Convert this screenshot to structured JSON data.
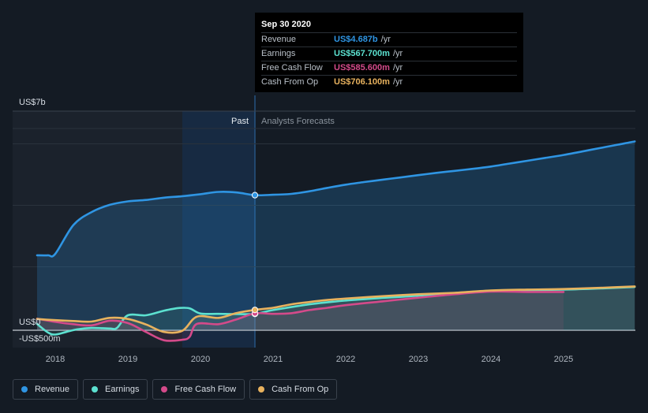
{
  "tooltip": {
    "date": "Sep 30 2020",
    "rows": [
      {
        "label": "Revenue",
        "value": "US$4.687b",
        "unit": "/yr",
        "color": "#2f95e3"
      },
      {
        "label": "Earnings",
        "value": "US$567.700m",
        "unit": "/yr",
        "color": "#5ce1d0"
      },
      {
        "label": "Free Cash Flow",
        "value": "US$585.600m",
        "unit": "/yr",
        "color": "#d44a8a"
      },
      {
        "label": "Cash From Op",
        "value": "US$706.100m",
        "unit": "/yr",
        "color": "#e8b25e"
      }
    ]
  },
  "labels": {
    "past": "Past",
    "forecast": "Analysts Forecasts"
  },
  "legend": [
    {
      "label": "Revenue",
      "color": "#2f95e3"
    },
    {
      "label": "Earnings",
      "color": "#5ce1d0"
    },
    {
      "label": "Free Cash Flow",
      "color": "#d44a8a"
    },
    {
      "label": "Cash From Op",
      "color": "#e8b25e"
    }
  ],
  "chart_data": {
    "type": "line",
    "unit": "US$ millions",
    "y_tick_labels": [
      {
        "value": 7000,
        "label": "US$7b"
      },
      {
        "value": 0,
        "label": "US$0"
      },
      {
        "value": -500,
        "label": "-US$500m"
      }
    ],
    "ylim": [
      -500,
      7000
    ],
    "xlim": [
      2017.6,
      2025.98
    ],
    "x_ticks": [
      2018,
      2019,
      2020,
      2021,
      2022,
      2023,
      2024,
      2025
    ],
    "past_end": 2020.75,
    "highlight_start": 2019.75,
    "grid": true,
    "series": [
      {
        "name": "Revenue",
        "color": "#2f95e3",
        "points": [
          [
            2017.75,
            2600
          ],
          [
            2017.9,
            2600
          ],
          [
            2018.0,
            2650
          ],
          [
            2018.25,
            3650
          ],
          [
            2018.5,
            4100
          ],
          [
            2018.75,
            4350
          ],
          [
            2019.0,
            4470
          ],
          [
            2019.25,
            4520
          ],
          [
            2019.5,
            4600
          ],
          [
            2019.75,
            4650
          ],
          [
            2020.0,
            4720
          ],
          [
            2020.25,
            4800
          ],
          [
            2020.5,
            4780
          ],
          [
            2020.75,
            4687
          ],
          [
            2021.0,
            4700
          ],
          [
            2021.25,
            4730
          ],
          [
            2021.5,
            4820
          ],
          [
            2021.75,
            4940
          ],
          [
            2022.0,
            5050
          ],
          [
            2022.25,
            5140
          ],
          [
            2022.5,
            5220
          ],
          [
            2022.75,
            5300
          ],
          [
            2023.0,
            5380
          ],
          [
            2023.25,
            5460
          ],
          [
            2023.5,
            5530
          ],
          [
            2023.75,
            5600
          ],
          [
            2024.0,
            5680
          ],
          [
            2024.25,
            5780
          ],
          [
            2024.5,
            5880
          ],
          [
            2024.75,
            5980
          ],
          [
            2025.0,
            6080
          ],
          [
            2025.25,
            6200
          ],
          [
            2025.5,
            6320
          ],
          [
            2025.75,
            6440
          ],
          [
            2025.98,
            6550
          ]
        ]
      },
      {
        "name": "Earnings",
        "color": "#5ce1d0",
        "points": [
          [
            2017.75,
            220
          ],
          [
            2017.9,
            -80
          ],
          [
            2018.0,
            -150
          ],
          [
            2018.15,
            -60
          ],
          [
            2018.3,
            30
          ],
          [
            2018.5,
            80
          ],
          [
            2018.75,
            60
          ],
          [
            2018.85,
            80
          ],
          [
            2019.0,
            520
          ],
          [
            2019.25,
            520
          ],
          [
            2019.5,
            680
          ],
          [
            2019.7,
            770
          ],
          [
            2019.85,
            760
          ],
          [
            2020.0,
            580
          ],
          [
            2020.25,
            570
          ],
          [
            2020.5,
            560
          ],
          [
            2020.75,
            567.7
          ],
          [
            2021.0,
            700
          ],
          [
            2021.5,
            900
          ],
          [
            2022.0,
            1030
          ],
          [
            2022.5,
            1120
          ],
          [
            2023.0,
            1200
          ],
          [
            2023.5,
            1290
          ],
          [
            2024.0,
            1370
          ],
          [
            2024.5,
            1390
          ],
          [
            2025.0,
            1410
          ],
          [
            2025.5,
            1450
          ],
          [
            2025.98,
            1500
          ]
        ]
      },
      {
        "name": "Free Cash Flow",
        "color": "#d44a8a",
        "points": [
          [
            2017.75,
            400
          ],
          [
            2018.0,
            290
          ],
          [
            2018.25,
            210
          ],
          [
            2018.5,
            170
          ],
          [
            2018.75,
            330
          ],
          [
            2019.0,
            250
          ],
          [
            2019.25,
            -60
          ],
          [
            2019.5,
            -350
          ],
          [
            2019.75,
            -330
          ],
          [
            2019.85,
            -230
          ],
          [
            2019.95,
            220
          ],
          [
            2020.25,
            210
          ],
          [
            2020.5,
            380
          ],
          [
            2020.75,
            585.6
          ],
          [
            2021.0,
            570
          ],
          [
            2021.25,
            590
          ],
          [
            2021.5,
            700
          ],
          [
            2021.75,
            780
          ],
          [
            2022.0,
            870
          ],
          [
            2022.5,
            1000
          ],
          [
            2023.0,
            1130
          ],
          [
            2023.5,
            1250
          ],
          [
            2024.0,
            1340
          ],
          [
            2024.5,
            1330
          ],
          [
            2025.0,
            1330
          ]
        ]
      },
      {
        "name": "Cash From Op",
        "color": "#e8b25e",
        "points": [
          [
            2017.75,
            390
          ],
          [
            2018.0,
            350
          ],
          [
            2018.25,
            320
          ],
          [
            2018.5,
            300
          ],
          [
            2018.75,
            430
          ],
          [
            2019.0,
            390
          ],
          [
            2019.25,
            200
          ],
          [
            2019.5,
            -60
          ],
          [
            2019.75,
            -20
          ],
          [
            2019.95,
            470
          ],
          [
            2020.25,
            430
          ],
          [
            2020.5,
            600
          ],
          [
            2020.75,
            706.1
          ],
          [
            2021.0,
            780
          ],
          [
            2021.25,
            900
          ],
          [
            2021.5,
            980
          ],
          [
            2021.75,
            1050
          ],
          [
            2022.0,
            1100
          ],
          [
            2022.5,
            1180
          ],
          [
            2023.0,
            1250
          ],
          [
            2023.5,
            1300
          ],
          [
            2024.0,
            1380
          ],
          [
            2024.5,
            1410
          ],
          [
            2025.0,
            1430
          ],
          [
            2025.5,
            1470
          ],
          [
            2025.98,
            1520
          ]
        ]
      }
    ]
  }
}
